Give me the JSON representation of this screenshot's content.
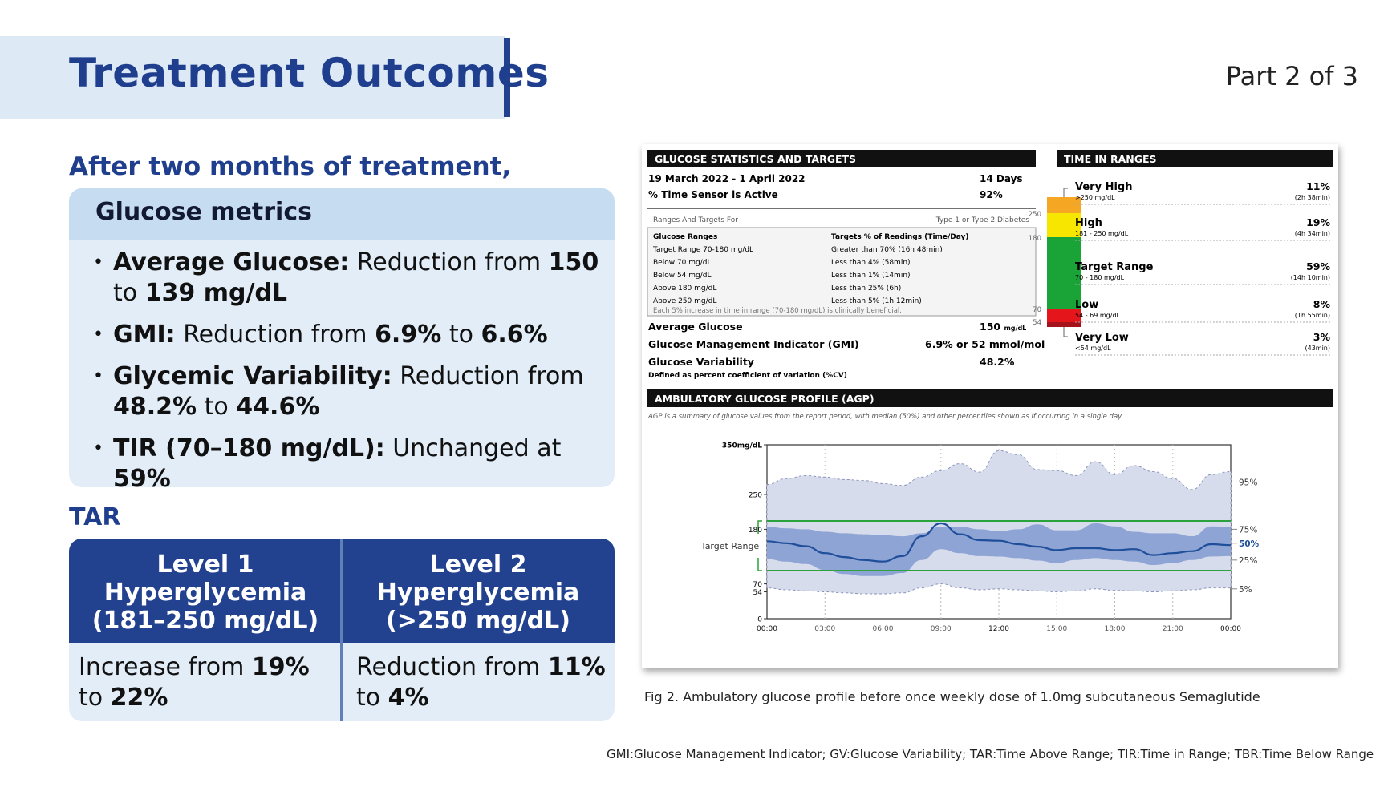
{
  "header": {
    "title": "Treatment Outcomes",
    "part": "Part 2 of 3"
  },
  "subhead": "After two months of treatment,",
  "metrics": {
    "title": "Glucose metrics",
    "items": [
      {
        "label": "Average Glucose:",
        "pre": "Reduction from",
        "v1": "150",
        "mid": "to",
        "v2": "139 mg/dL"
      },
      {
        "label": "GMI:",
        "pre": "Reduction from",
        "v1": "6.9%",
        "mid": "to",
        "v2": "6.6%"
      },
      {
        "label": "Glycemic Variability:",
        "pre": "Reduction from",
        "v1": "48.2%",
        "mid": "to",
        "v2": "44.6%"
      },
      {
        "label": "TIR (70–180 mg/dL):",
        "pre": "Unchanged at",
        "v1": "59%"
      }
    ]
  },
  "tar": {
    "label": "TAR",
    "level1": {
      "l1": "Level 1",
      "l2": "Hyperglycemia",
      "l3": "(181–250 mg/dL)",
      "pre": "Increase from",
      "v1": "19%",
      "mid": "to",
      "v2": "22%"
    },
    "level2": {
      "l1": "Level 2",
      "l2": "Hyperglycemia",
      "l3": "(>250 mg/dL)",
      "pre": "Reduction from",
      "v1": "11%",
      "mid": "to",
      "v2": "4%"
    }
  },
  "report": {
    "stats_header": "GLUCOSE STATISTICS AND TARGETS",
    "date_range": "19 March 2022 - 1 April 2022",
    "days": "14 Days",
    "sensor_label": "% Time Sensor is Active",
    "sensor_value": "92%",
    "ranges_for": "Ranges And Targets For",
    "diabetes_type": "Type 1 or Type 2 Diabetes",
    "col1": "Glucose Ranges",
    "col2": "Targets % of Readings (Time/Day)",
    "targets": [
      {
        "range": "Target Range 70-180 mg/dL",
        "target": "Greater than 70% (16h 48min)"
      },
      {
        "range": "Below 70 mg/dL",
        "target": "Less than 4% (58min)"
      },
      {
        "range": "Below 54 mg/dL",
        "target": "Less than 1% (14min)"
      },
      {
        "range": "Above 180 mg/dL",
        "target": "Less than 25% (6h)"
      },
      {
        "range": "Above 250 mg/dL",
        "target": "Less than 5% (1h 12min)"
      }
    ],
    "benefit_note": "Each 5% increase in time in range (70-180 mg/dL) is clinically beneficial.",
    "avg_label": "Average Glucose",
    "avg_value": "150",
    "avg_unit": "mg/dL",
    "gmi_label": "Glucose Management Indicator (GMI)",
    "gmi_value": "6.9% or 52 mmol/mol",
    "gv_label": "Glucose Variability",
    "gv_value": "48.2%",
    "gv_def": "Defined as percent coefficient of variation (%CV)",
    "tir_header": "TIME IN RANGES",
    "bar_ticks": [
      "250",
      "180",
      "70",
      "54"
    ],
    "ranges": [
      {
        "name": "Very High",
        "sub": ">250 mg/dL",
        "pct": "11%",
        "time": "(2h 38min)",
        "color": "#f5a623"
      },
      {
        "name": "High",
        "sub": "181 - 250 mg/dL",
        "pct": "19%",
        "time": "(4h 34min)",
        "color": "#f7e600"
      },
      {
        "name": "Target Range",
        "sub": "70 - 180 mg/dL",
        "pct": "59%",
        "time": "(14h 10min)",
        "color": "#1aa336"
      },
      {
        "name": "Low",
        "sub": "54 - 69 mg/dL",
        "pct": "8%",
        "time": "(1h 55min)",
        "color": "#e4161b"
      },
      {
        "name": "Very Low",
        "sub": "<54 mg/dL",
        "pct": "3%",
        "time": "(43min)",
        "color": "#a5121b"
      }
    ],
    "agp_header": "AMBULATORY GLUCOSE PROFILE (AGP)",
    "agp_note": "AGP is a summary of glucose values from the report period, with median (50%) and other percentiles shown as if occurring in a single day.",
    "y_ticks": [
      "350mg/dL",
      "250",
      "180",
      "70",
      "54",
      "0"
    ],
    "x_ticks": [
      "00:00",
      "03:00",
      "06:00",
      "09:00",
      "12:00",
      "15:00",
      "18:00",
      "21:00",
      "00:00"
    ],
    "target_label": "Target Range",
    "pct_labels": [
      "95%",
      "75%",
      "50%",
      "25%",
      "5%"
    ]
  },
  "caption": "Fig 2. Ambulatory glucose profile before once weekly dose of 1.0mg subcutaneous Semaglutide",
  "footnote": "GMI:Glucose Management Indicator; GV:Glucose Variability; TAR:Time Above Range; TIR:Time in Range; TBR:Time Below Range"
}
